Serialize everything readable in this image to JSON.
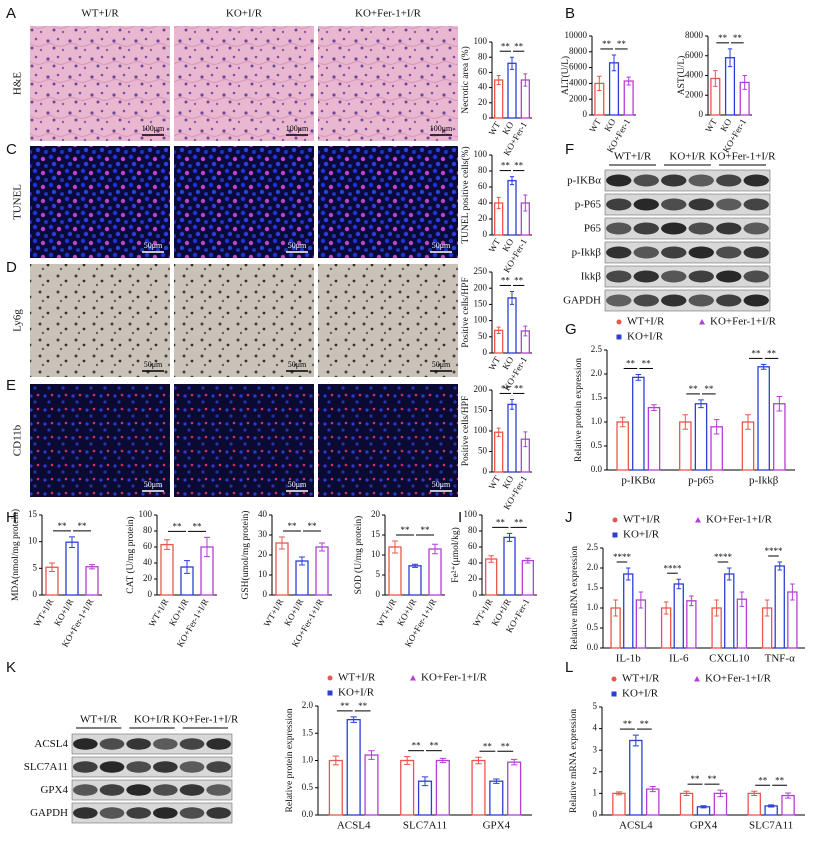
{
  "figure": {
    "panel_letters": [
      "A",
      "B",
      "C",
      "D",
      "E",
      "F",
      "G",
      "H",
      "I",
      "J",
      "K",
      "L"
    ],
    "image_columns": [
      "WT+I/R",
      "KO+I/R",
      "KO+Fer-1+I/R"
    ],
    "image_rows": [
      "H&E",
      "TUNEL",
      "Ly6g",
      "CD11b"
    ],
    "scale_bars": [
      "100μm",
      "50μm",
      "50μm",
      "50μm"
    ],
    "blot_f": {
      "groups": [
        "WT+I/R",
        "KO+I/R",
        "KO+Fer-1+I/R"
      ],
      "rows": [
        "p-IKBα",
        "p-P65",
        "P65",
        "p-Ikkβ",
        "Ikkβ",
        "GAPDH"
      ]
    },
    "blot_k": {
      "groups": [
        "WT+I/R",
        "KO+I/R",
        "KO+Fer-1+I/R"
      ],
      "rows": [
        "ACSL4",
        "SLC7A11",
        "GPX4",
        "GAPDH"
      ]
    }
  },
  "chart_data": [
    {
      "type": "bar",
      "y_label": "Necrotic area (%)",
      "categories": [
        "WT",
        "KO",
        "KO+Fer-1"
      ],
      "values": [
        50,
        72,
        50
      ],
      "errors": [
        6,
        8,
        8
      ],
      "colors": [
        "#e8574b",
        "#2b3fd6",
        "#b43fd6"
      ],
      "ylim": [
        0,
        100
      ],
      "yticks": [
        0,
        20,
        40,
        60,
        80,
        100
      ],
      "annotations": [
        "**",
        "**"
      ]
    },
    {
      "type": "bar",
      "y_label": "ALT(U/L)",
      "categories": [
        "WT",
        "KO",
        "KO+Fer-1"
      ],
      "values": [
        4000,
        6600,
        4300
      ],
      "errors": [
        900,
        1000,
        500
      ],
      "colors": [
        "#e8574b",
        "#2b3fd6",
        "#b43fd6"
      ],
      "ylim": [
        0,
        10000
      ],
      "yticks": [
        0,
        2000,
        4000,
        6000,
        8000,
        10000
      ],
      "annotations": [
        "**",
        "**"
      ]
    },
    {
      "type": "bar",
      "y_label": "AST(U/L)",
      "categories": [
        "WT",
        "KO",
        "KO+Fer-1"
      ],
      "values": [
        3700,
        5800,
        3300
      ],
      "errors": [
        800,
        900,
        700
      ],
      "colors": [
        "#e8574b",
        "#2b3fd6",
        "#b43fd6"
      ],
      "ylim": [
        0,
        8000
      ],
      "yticks": [
        0,
        2000,
        4000,
        6000,
        8000
      ],
      "annotations": [
        "**",
        "**"
      ]
    },
    {
      "type": "bar",
      "y_label": "TUNEL positive cells(%)",
      "categories": [
        "WT",
        "KO",
        "KO+Fer-1"
      ],
      "values": [
        40,
        68,
        40
      ],
      "errors": [
        7,
        5,
        10
      ],
      "colors": [
        "#e8574b",
        "#2b3fd6",
        "#b43fd6"
      ],
      "ylim": [
        0,
        100
      ],
      "yticks": [
        0,
        20,
        40,
        60,
        80,
        100
      ],
      "annotations": [
        "**",
        "**"
      ]
    },
    {
      "type": "bar",
      "y_label": "Positive cells/HPF",
      "categories": [
        "WT",
        "KO",
        "KO+Fer-1"
      ],
      "values": [
        70,
        170,
        68
      ],
      "errors": [
        10,
        20,
        15
      ],
      "colors": [
        "#e8574b",
        "#2b3fd6",
        "#b43fd6"
      ],
      "ylim": [
        0,
        250
      ],
      "yticks": [
        0,
        50,
        100,
        150,
        200,
        250
      ],
      "annotations": [
        "**",
        "**"
      ]
    },
    {
      "type": "bar",
      "y_label": "Positive cells/HPF",
      "categories": [
        "WT",
        "KO",
        "KO+Fer-1"
      ],
      "values": [
        97,
        165,
        80
      ],
      "errors": [
        10,
        12,
        18
      ],
      "colors": [
        "#e8574b",
        "#2b3fd6",
        "#b43fd6"
      ],
      "ylim": [
        0,
        200
      ],
      "yticks": [
        0,
        50,
        100,
        150,
        200
      ],
      "annotations": [
        "**",
        "**"
      ]
    },
    {
      "type": "grouped_bar",
      "y_label": "Relative protein expression",
      "categories": [
        "p-IKBα",
        "p-p65",
        "p-Ikkβ"
      ],
      "legend": "top",
      "series": [
        {
          "name": "WT+I/R",
          "color": "#e8574b",
          "values": [
            1.0,
            1.0,
            1.0
          ],
          "errors": [
            0.1,
            0.15,
            0.15
          ]
        },
        {
          "name": "KO+I/R",
          "color": "#2b3fd6",
          "values": [
            1.93,
            1.38,
            2.15
          ],
          "errors": [
            0.06,
            0.08,
            0.05
          ]
        },
        {
          "name": "KO+Fer-1+I/R",
          "color": "#b43fd6",
          "values": [
            1.3,
            0.9,
            1.38
          ],
          "errors": [
            0.06,
            0.15,
            0.15
          ]
        }
      ],
      "ylim": [
        0,
        2.5
      ],
      "yticks": [
        {
          "value": 0,
          "label": "0.0"
        },
        0.5,
        {
          "value": 1,
          "label": "1.0"
        },
        1.5,
        {
          "value": 2,
          "label": "2.0"
        },
        2.5
      ],
      "annotations": [
        [
          "**",
          "**"
        ],
        [
          "**",
          "**"
        ],
        [
          "**",
          "**"
        ]
      ]
    },
    {
      "type": "bar",
      "y_label": "MDA(nmol/mg protein)",
      "categories": [
        "WT+I/R",
        "KO+I/R",
        "KO+Fer-1+I/R"
      ],
      "values": [
        5.2,
        9.9,
        5.3
      ],
      "errors": [
        0.8,
        1.0,
        0.4
      ],
      "colors": [
        "#e8574b",
        "#2b3fd6",
        "#b43fd6"
      ],
      "ylim": [
        0,
        15
      ],
      "yticks": [
        0,
        5,
        10,
        15
      ],
      "annotations": [
        "**",
        "**"
      ]
    },
    {
      "type": "bar",
      "y_label": "CAT (U/mg protein)",
      "categories": [
        "WT+I/R",
        "KO+I/R",
        "KO+Fer-1+I/R"
      ],
      "values": [
        63,
        35,
        60
      ],
      "errors": [
        6,
        8,
        12
      ],
      "colors": [
        "#e8574b",
        "#2b3fd6",
        "#b43fd6"
      ],
      "ylim": [
        0,
        100
      ],
      "yticks": [
        0,
        20,
        40,
        60,
        80,
        100
      ],
      "annotations": [
        "**",
        "**"
      ]
    },
    {
      "type": "bar",
      "y_label": "GSH(umol/mg protein)",
      "categories": [
        "WT+I/R",
        "KO+I/R",
        "KO+Fer-1+I/R"
      ],
      "values": [
        26,
        17,
        24
      ],
      "errors": [
        3,
        2,
        2
      ],
      "colors": [
        "#e8574b",
        "#2b3fd6",
        "#b43fd6"
      ],
      "ylim": [
        0,
        40
      ],
      "yticks": [
        0,
        10,
        20,
        30,
        40
      ],
      "annotations": [
        "**",
        "**"
      ]
    },
    {
      "type": "bar",
      "y_label": "SOD (U/mg protein)",
      "categories": [
        "WT+I/R",
        "KO+I/R",
        "KO+Fer-1+I/R"
      ],
      "values": [
        12,
        7.3,
        11.5
      ],
      "errors": [
        1.5,
        0.4,
        1.2
      ],
      "colors": [
        "#e8574b",
        "#2b3fd6",
        "#b43fd6"
      ],
      "ylim": [
        0,
        20
      ],
      "yticks": [
        0,
        5,
        10,
        15,
        20
      ],
      "annotations": [
        "**",
        "**"
      ]
    },
    {
      "type": "bar",
      "y_label": "Fe²⁺(μmol/kg)",
      "categories": [
        "WT+I/R",
        "KO+I/R",
        "KO+Fer-1"
      ],
      "values": [
        45,
        72,
        43
      ],
      "errors": [
        4,
        5,
        3
      ],
      "colors": [
        "#e8574b",
        "#2b3fd6",
        "#b43fd6"
      ],
      "ylim": [
        0,
        100
      ],
      "yticks": [
        0,
        20,
        40,
        60,
        80,
        100
      ],
      "annotations": [
        "**",
        "**"
      ]
    },
    {
      "type": "grouped_bar",
      "y_label": "Relative mRNA expression",
      "categories": [
        "IL-1b",
        "IL-6",
        "CXCL10",
        "TNF-α"
      ],
      "legend": "top",
      "series": [
        {
          "name": "WT+I/R",
          "color": "#e8574b",
          "values": [
            1.0,
            1.0,
            1.0,
            1.0
          ],
          "errors": [
            0.2,
            0.15,
            0.2,
            0.2
          ]
        },
        {
          "name": "KO+I/R",
          "color": "#2b3fd6",
          "values": [
            1.85,
            1.6,
            1.85,
            2.05
          ],
          "errors": [
            0.15,
            0.12,
            0.15,
            0.1
          ]
        },
        {
          "name": "KO+Fer-1+I/R",
          "color": "#b43fd6",
          "values": [
            1.2,
            1.18,
            1.22,
            1.4
          ],
          "errors": [
            0.2,
            0.12,
            0.18,
            0.2
          ]
        }
      ],
      "ylim": [
        0,
        2.5
      ],
      "yticks": [
        {
          "value": 0,
          "label": "0.0"
        },
        0.5,
        {
          "value": 1,
          "label": "1.0"
        },
        1.5,
        {
          "value": 2,
          "label": "2.0"
        },
        2.5
      ],
      "annotations": [
        [
          "****"
        ],
        [
          "****"
        ],
        [
          "****"
        ],
        [
          "****"
        ]
      ]
    },
    {
      "type": "grouped_bar",
      "y_label": "Relative protein expression",
      "categories": [
        "ACSL4",
        "SLC7A11",
        "GPX4"
      ],
      "legend": "top",
      "series": [
        {
          "name": "WT+I/R",
          "color": "#e8574b",
          "values": [
            1.0,
            1.0,
            1.0
          ],
          "errors": [
            0.08,
            0.07,
            0.06
          ]
        },
        {
          "name": "KO+I/R",
          "color": "#2b3fd6",
          "values": [
            1.75,
            0.62,
            0.62
          ],
          "errors": [
            0.05,
            0.08,
            0.04
          ]
        },
        {
          "name": "KO+Fer-1+I/R",
          "color": "#b43fd6",
          "values": [
            1.1,
            1.0,
            0.97
          ],
          "errors": [
            0.08,
            0.04,
            0.05
          ]
        }
      ],
      "ylim": [
        0,
        2
      ],
      "yticks": [
        {
          "value": 0,
          "label": "0.0"
        },
        0.5,
        {
          "value": 1,
          "label": "1.0"
        },
        1.5,
        {
          "value": 2,
          "label": "2.0"
        }
      ],
      "annotations": [
        [
          "**",
          "**"
        ],
        [
          "**",
          "**"
        ],
        [
          "**",
          "**"
        ]
      ]
    },
    {
      "type": "grouped_bar",
      "y_label": "Relative mRNA expression",
      "categories": [
        "ACSL4",
        "GPX4",
        "SLC7A11"
      ],
      "legend": "top",
      "series": [
        {
          "name": "WT+I/R",
          "color": "#e8574b",
          "values": [
            1.0,
            1.0,
            1.0
          ],
          "errors": [
            0.07,
            0.1,
            0.1
          ]
        },
        {
          "name": "KO+I/R",
          "color": "#2b3fd6",
          "values": [
            3.45,
            0.38,
            0.42
          ],
          "errors": [
            0.25,
            0.05,
            0.05
          ]
        },
        {
          "name": "KO+Fer-1+I/R",
          "color": "#b43fd6",
          "values": [
            1.2,
            1.0,
            0.9
          ],
          "errors": [
            0.12,
            0.15,
            0.12
          ]
        }
      ],
      "ylim": [
        0,
        5
      ],
      "yticks": [
        0,
        1,
        2,
        3,
        4,
        5
      ],
      "annotations": [
        [
          "**",
          "**"
        ],
        [
          "**",
          "**"
        ],
        [
          "**",
          "**"
        ]
      ]
    }
  ]
}
